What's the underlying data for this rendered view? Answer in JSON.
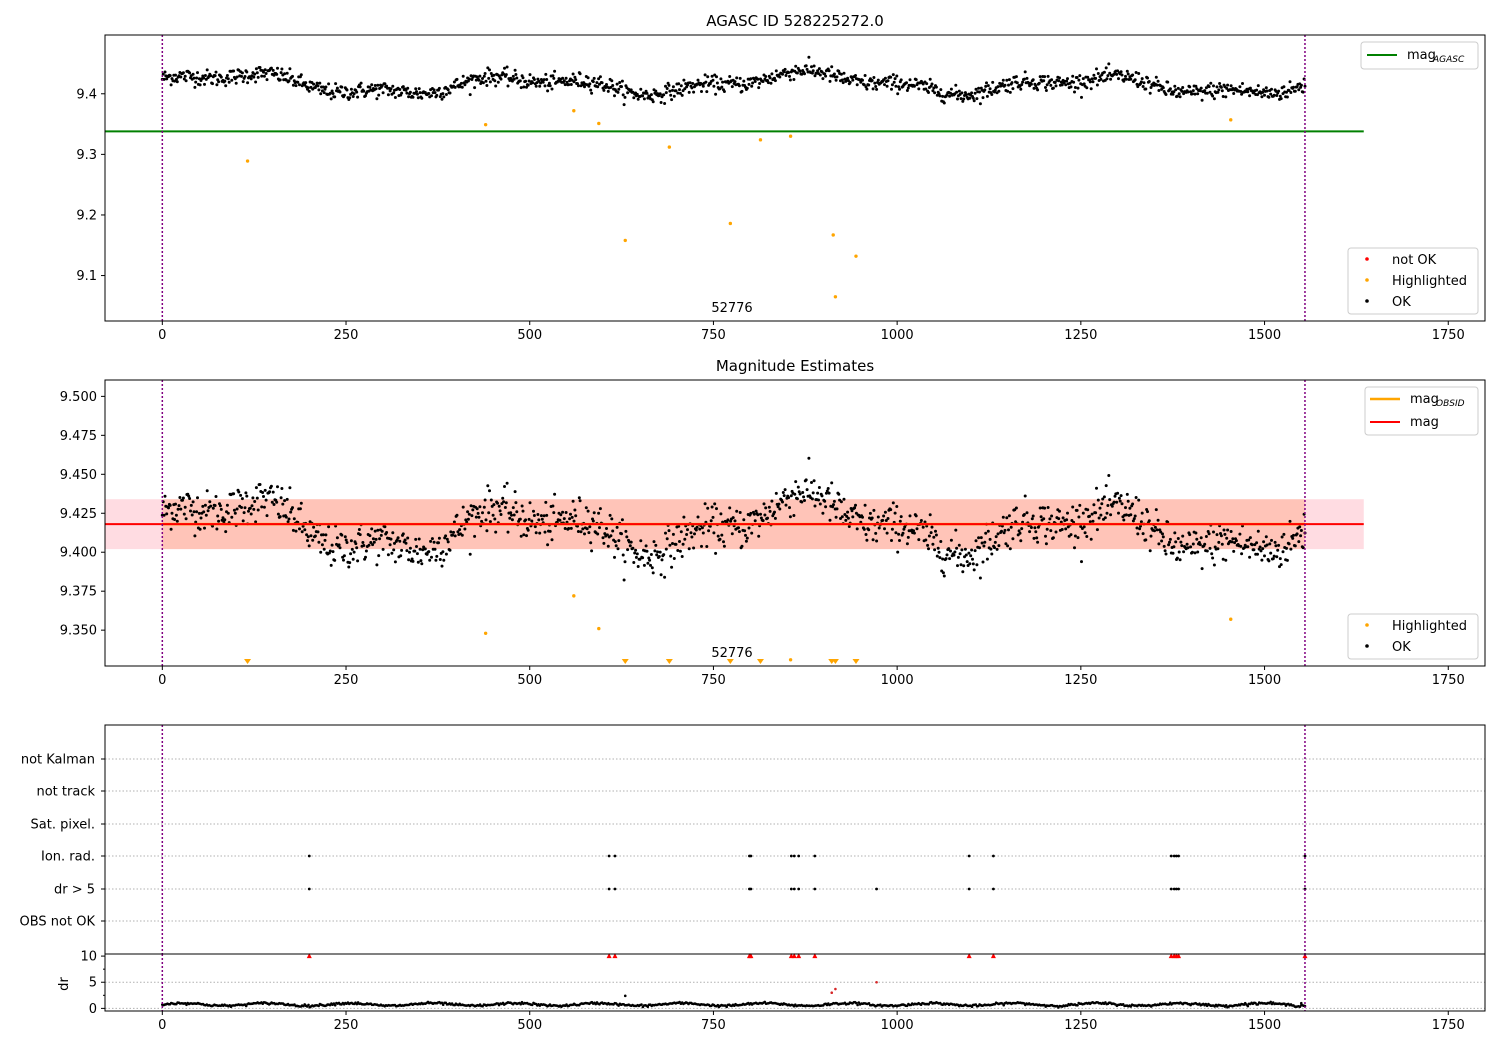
{
  "chart_data": [
    {
      "type": "scatter",
      "title": "AGASC ID 528225272.0",
      "annotation": "52776",
      "xlim": [
        -78,
        1800
      ],
      "ylim": [
        9.025,
        9.497
      ],
      "xticks": [
        0,
        250,
        500,
        750,
        1000,
        1250,
        1500,
        1750
      ],
      "yticks": [
        9.1,
        9.2,
        9.3,
        9.4
      ],
      "vlines": [
        0,
        1555
      ],
      "ok_points": {
        "x_start": 0,
        "x_end": 1555,
        "count": 1300,
        "base": 9.416,
        "noise": 0.012,
        "trend_amp": 0.013
      },
      "hlines": [
        {
          "name": "mag",
          "name_sub": "AGASC",
          "y": 9.338,
          "x0": -78,
          "x1": 1635,
          "color": "#008000"
        }
      ],
      "series": [
        {
          "name": "not OK",
          "color": "#ff0000",
          "points": []
        },
        {
          "name": "Highlighted",
          "color": "#ffa500",
          "points": [
            [
              116,
              9.289
            ],
            [
              440,
              9.349
            ],
            [
              560,
              9.372
            ],
            [
              594,
              9.351
            ],
            [
              630,
              9.158
            ],
            [
              690,
              9.312
            ],
            [
              773,
              9.186
            ],
            [
              814,
              9.324
            ],
            [
              855,
              9.33
            ],
            [
              913,
              9.167
            ],
            [
              916,
              9.065
            ],
            [
              944,
              9.132
            ],
            [
              1454,
              9.357
            ]
          ]
        },
        {
          "name": "OK",
          "color": "#000000",
          "points": []
        }
      ],
      "legend_lines": "top-right",
      "legend_points": "lower-right"
    },
    {
      "type": "scatter",
      "title": "Magnitude Estimates",
      "annotation": "52776",
      "xlim": [
        -78,
        1800
      ],
      "ylim": [
        9.327,
        9.5105
      ],
      "xticks": [
        0,
        250,
        500,
        750,
        1000,
        1250,
        1500,
        1750
      ],
      "yticks": [
        9.35,
        9.375,
        9.4,
        9.425,
        9.45,
        9.475,
        9.5
      ],
      "ytick_labels": [
        "9.350",
        "9.375",
        "9.400",
        "9.425",
        "9.450",
        "9.475",
        "9.500"
      ],
      "vlines": [
        0,
        1555
      ],
      "band": {
        "y0": 9.402,
        "y1": 9.434,
        "x0": -78,
        "x1": 1635
      },
      "hlines": [
        {
          "name": "mag",
          "name_sub": "OBSID",
          "y": 9.418,
          "x0": 0,
          "x1": 1555,
          "color": "#ffa500"
        },
        {
          "name": "mag",
          "name_sub": "",
          "y": 9.418,
          "x0": -78,
          "x1": 1635,
          "color": "#ff0000"
        }
      ],
      "series": [
        {
          "name": "Highlighted",
          "color": "#ffa500",
          "points": [
            [
              440,
              9.348
            ],
            [
              560,
              9.372
            ],
            [
              594,
              9.351
            ],
            [
              855,
              9.331
            ],
            [
              1454,
              9.357
            ]
          ]
        },
        {
          "name": "OK",
          "color": "#000000",
          "points": []
        }
      ],
      "below_range_markers": [
        116,
        630,
        690,
        773,
        814,
        911,
        916,
        944
      ],
      "legend_lines": "top-right",
      "legend_points": "lower-right"
    },
    {
      "type": "scatter",
      "title": "",
      "xlim": [
        -78,
        1800
      ],
      "xticks": [
        0,
        250,
        500,
        750,
        1000,
        1250,
        1500,
        1750
      ],
      "vlines": [
        0,
        1555
      ],
      "flag_rows": [
        "not Kalman",
        "not track",
        "Sat. pixel.",
        "Ion. rad.",
        "dr > 5",
        "OBS not OK"
      ],
      "flags": {
        "Ion. rad.": [
          200,
          608,
          616,
          799,
          801,
          856,
          860,
          866,
          888,
          1098,
          1131,
          1373,
          1377,
          1380,
          1383,
          1555
        ],
        "dr > 5": [
          200,
          608,
          616,
          799,
          801,
          856,
          860,
          866,
          888,
          972,
          1098,
          1131,
          1373,
          1377,
          1380,
          1383,
          1555
        ]
      },
      "dr": {
        "ylabel": "dr",
        "ylim": [
          -0.5,
          10.4
        ],
        "yticks": [
          0,
          5,
          10
        ],
        "red_markers": [
          200,
          608,
          616,
          799,
          801,
          856,
          860,
          866,
          888,
          1098,
          1131,
          1373,
          1377,
          1380,
          1383,
          1555
        ],
        "outliers": [
          [
            630,
            2.4
          ],
          [
            911,
            3.0
          ],
          [
            916,
            3.7
          ],
          [
            972,
            5.0
          ],
          [
            1550,
            1.0
          ]
        ]
      }
    }
  ]
}
